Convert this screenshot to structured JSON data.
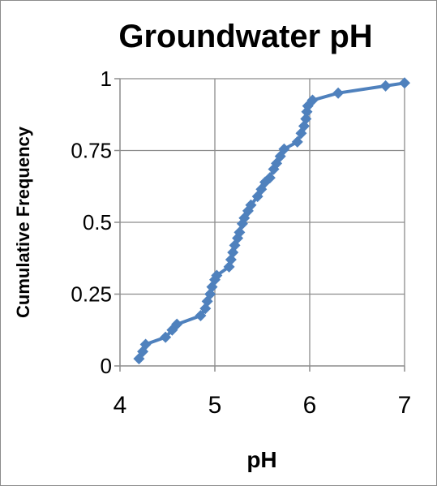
{
  "chart_data": {
    "type": "line",
    "title": "Groundwater pH",
    "xlabel": "pH",
    "ylabel": "Cumulative Frequency",
    "xlim": [
      4,
      7
    ],
    "ylim": [
      0,
      1
    ],
    "x_ticks": [
      "4",
      "5",
      "6",
      "7"
    ],
    "y_ticks": [
      "0",
      "0.25",
      "0.5",
      "0.75",
      "1"
    ],
    "grid": true,
    "legend": "none",
    "series": [
      {
        "color": "#4f81bd",
        "marker": "diamond",
        "points": [
          [
            4.2,
            0.025
          ],
          [
            4.24,
            0.05
          ],
          [
            4.27,
            0.075
          ],
          [
            4.48,
            0.1
          ],
          [
            4.55,
            0.125
          ],
          [
            4.6,
            0.145
          ],
          [
            4.85,
            0.175
          ],
          [
            4.9,
            0.2
          ],
          [
            4.92,
            0.225
          ],
          [
            4.95,
            0.25
          ],
          [
            4.97,
            0.275
          ],
          [
            5.0,
            0.3
          ],
          [
            5.02,
            0.315
          ],
          [
            5.15,
            0.345
          ],
          [
            5.17,
            0.37
          ],
          [
            5.19,
            0.395
          ],
          [
            5.21,
            0.42
          ],
          [
            5.24,
            0.445
          ],
          [
            5.26,
            0.465
          ],
          [
            5.29,
            0.495
          ],
          [
            5.31,
            0.515
          ],
          [
            5.35,
            0.54
          ],
          [
            5.38,
            0.56
          ],
          [
            5.45,
            0.59
          ],
          [
            5.49,
            0.615
          ],
          [
            5.53,
            0.64
          ],
          [
            5.58,
            0.655
          ],
          [
            5.62,
            0.685
          ],
          [
            5.65,
            0.705
          ],
          [
            5.69,
            0.73
          ],
          [
            5.73,
            0.755
          ],
          [
            5.87,
            0.78
          ],
          [
            5.91,
            0.81
          ],
          [
            5.94,
            0.835
          ],
          [
            5.96,
            0.86
          ],
          [
            5.97,
            0.885
          ],
          [
            5.98,
            0.905
          ],
          [
            6.03,
            0.925
          ],
          [
            6.3,
            0.95
          ],
          [
            6.8,
            0.975
          ],
          [
            7.0,
            0.985
          ]
        ]
      }
    ]
  }
}
